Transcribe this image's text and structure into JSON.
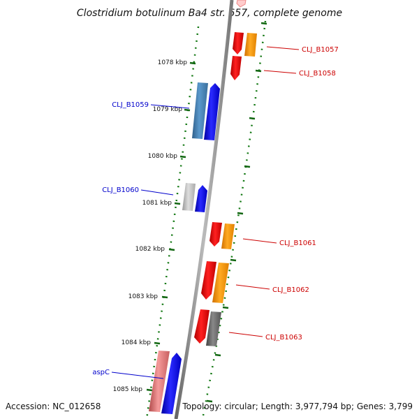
{
  "title": "Clostridium botulinum Ba4 str. 657, complete genome",
  "footer": {
    "accession": "Accession: NC_012658",
    "topology": "Topology: circular; Length: 3,977,794 bp; Genes: 3,799"
  },
  "ticks": [
    {
      "label": "1078 kbp"
    },
    {
      "label": "1079 kbp"
    },
    {
      "label": "1080 kbp"
    },
    {
      "label": "1081 kbp"
    },
    {
      "label": "1082 kbp"
    },
    {
      "label": "1083 kbp"
    },
    {
      "label": "1084 kbp"
    },
    {
      "label": "1085 kbp"
    }
  ],
  "genes": [
    {
      "label": "CLJ_B1057",
      "strand": "reverse"
    },
    {
      "label": "CLJ_B1058",
      "strand": "reverse"
    },
    {
      "label": "CLJ_B1059",
      "strand": "forward"
    },
    {
      "label": "CLJ_B1060",
      "strand": "forward"
    },
    {
      "label": "CLJ_B1061",
      "strand": "reverse"
    },
    {
      "label": "CLJ_B1062",
      "strand": "reverse"
    },
    {
      "label": "CLJ_B1063",
      "strand": "reverse"
    },
    {
      "label": "aspC",
      "strand": "forward"
    }
  ],
  "colors": {
    "forward_label": "#0000cc",
    "reverse_label": "#cc0000",
    "cds_forward": "#0000ff",
    "cds_reverse": "#ff0000",
    "orange": "#ff9900",
    "steel": "#4682b4",
    "grey": "#bbbbbb",
    "dark_grey": "#666666",
    "pink": "#ee7777",
    "tick": "#006600",
    "backbone": "#888888"
  }
}
